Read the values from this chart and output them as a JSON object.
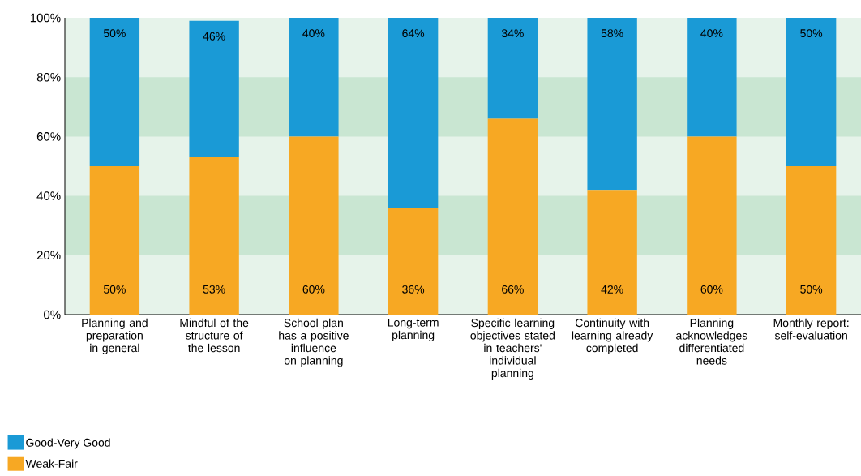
{
  "chart_data": {
    "type": "bar",
    "stacked": true,
    "categories": [
      "Planning and preparation in general",
      "Mindful of the structure of the lesson",
      "School plan has a positive influence on planning",
      "Long-term planning",
      "Specific learning objectives stated in teachers' individual planning",
      "Continuity with learning already completed",
      "Planning acknowledges differentiated needs",
      "Monthly report: self-evaluation"
    ],
    "series": [
      {
        "name": "Weak-Fair",
        "color": "#f7a823",
        "values": [
          50,
          53,
          60,
          36,
          66,
          42,
          60,
          50
        ],
        "value_labels": [
          "50%",
          "53%",
          "60%",
          "36%",
          "66%",
          "42%",
          "60%",
          "50%"
        ]
      },
      {
        "name": "Good-Very Good",
        "color": "#1a9ad6",
        "values": [
          50,
          46,
          40,
          64,
          34,
          58,
          40,
          50
        ],
        "value_labels": [
          "50%",
          "46%",
          "40%",
          "64%",
          "34%",
          "58%",
          "40%",
          "50%"
        ]
      }
    ],
    "ylim": [
      0,
      100
    ],
    "yticks": [
      {
        "value": 0,
        "label": "0%"
      },
      {
        "value": 20,
        "label": "20%"
      },
      {
        "value": 40,
        "label": "40%"
      },
      {
        "value": 60,
        "label": "60%"
      },
      {
        "value": 80,
        "label": "80%"
      },
      {
        "value": 100,
        "label": "100%"
      }
    ],
    "bands": [
      {
        "axis": "y",
        "from": 20,
        "to": 40,
        "color": "#c9e6d2"
      },
      {
        "axis": "y",
        "from": 60,
        "to": 80,
        "color": "#c9e6d2"
      }
    ],
    "grid": false,
    "legend": "bottom left"
  }
}
